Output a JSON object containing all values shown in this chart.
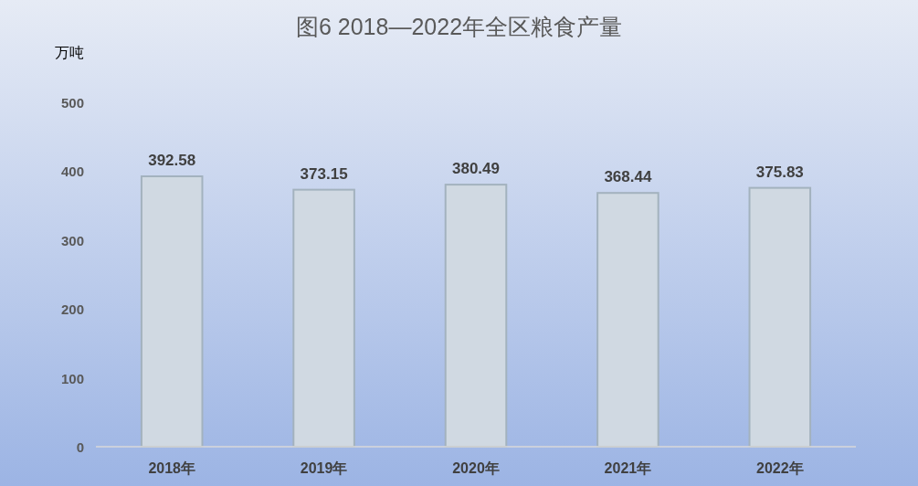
{
  "chart_data": {
    "type": "bar",
    "title": "图6 2018—2022年全区粮食产量",
    "ylabel": "万吨",
    "categories": [
      "2018年",
      "2019年",
      "2020年",
      "2021年",
      "2022年"
    ],
    "values": [
      392.58,
      373.15,
      380.49,
      368.44,
      375.83
    ],
    "color": "#d0d9e2",
    "ylim": [
      0,
      500
    ],
    "yticks": [
      0,
      100,
      200,
      300,
      400,
      500
    ],
    "grid": false,
    "data_labels": true
  }
}
